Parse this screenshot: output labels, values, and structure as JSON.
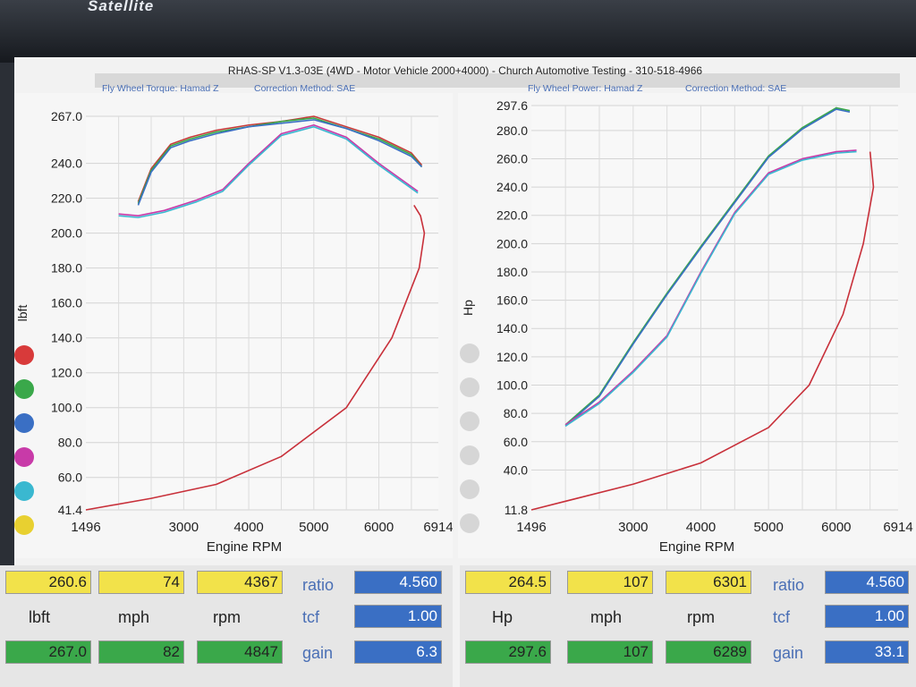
{
  "window": {
    "brand": "Satellite",
    "title": "RHAS-SP V1.3-03E  (4WD - Motor Vehicle 2000+4000) - Church Automotive Testing - 310-518-4966"
  },
  "left_chart": {
    "subtitle_a": "Fly Wheel Torque: Hamad Z",
    "subtitle_b": "Correction Method: SAE",
    "ylabel": "lbft",
    "xlabel": "Engine RPM"
  },
  "right_chart": {
    "subtitle_a": "Fly Wheel Power: Hamad Z",
    "subtitle_b": "Correction Method: SAE",
    "ylabel": "Hp",
    "xlabel": "Engine RPM"
  },
  "legend_colors": [
    "#d83a3a",
    "#3aa84a",
    "#3a6fc4",
    "#c83aa8",
    "#3ab8d0",
    "#e8d030"
  ],
  "chart_data": [
    {
      "type": "line",
      "title": "",
      "xlabel": "Engine RPM",
      "ylabel": "lbft",
      "xlim": [
        1496,
        6914
      ],
      "ylim": [
        41.4,
        267.0
      ],
      "x_ticks": [
        "1496",
        "3000",
        "4000",
        "5000",
        "6000",
        "6914"
      ],
      "y_ticks": [
        "267.0",
        "240.0",
        "220.0",
        "200.0",
        "180.0",
        "160.0",
        "140.0",
        "120.0",
        "100.0",
        "80.0",
        "60.0",
        "41.4"
      ],
      "series": [
        {
          "color": "#c83a3a",
          "x": [
            2300,
            2500,
            2800,
            3100,
            3500,
            4000,
            4500,
            5000,
            5500,
            6000,
            6500,
            6660
          ],
          "y": [
            218,
            237,
            251,
            255,
            259,
            262,
            264,
            267,
            261,
            255,
            246,
            239
          ]
        },
        {
          "color": "#3aa84a",
          "x": [
            2300,
            2500,
            2800,
            3100,
            3500,
            4000,
            4500,
            5000,
            5500,
            6000,
            6500,
            6660
          ],
          "y": [
            217,
            236,
            250,
            254,
            258,
            261,
            264,
            266,
            260,
            254,
            245,
            238
          ]
        },
        {
          "color": "#3a6fc4",
          "x": [
            2300,
            2500,
            2800,
            3100,
            3500,
            4000,
            4500,
            5000,
            5500,
            6000,
            6500,
            6660
          ],
          "y": [
            216,
            235,
            249,
            253,
            257,
            261,
            263,
            265,
            260,
            253,
            244,
            238
          ]
        },
        {
          "color": "#c83aa8",
          "x": [
            2000,
            2300,
            2700,
            3200,
            3600,
            4000,
            4500,
            5000,
            5500,
            6000,
            6600
          ],
          "y": [
            211,
            210,
            213,
            219,
            225,
            240,
            257,
            262,
            255,
            240,
            224
          ]
        },
        {
          "color": "#3ab8d0",
          "x": [
            2000,
            2300,
            2700,
            3200,
            3600,
            4000,
            4500,
            5000,
            5500,
            6000,
            6600
          ],
          "y": [
            210,
            209,
            212,
            218,
            224,
            239,
            256,
            261,
            254,
            239,
            223
          ]
        },
        {
          "color": "#c8303a",
          "x": [
            1496,
            2500,
            3500,
            4500,
            5500,
            6200,
            6620,
            6700,
            6640,
            6540
          ],
          "y": [
            41.4,
            48,
            56,
            72,
            100,
            140,
            180,
            200,
            210,
            216
          ]
        }
      ]
    },
    {
      "type": "line",
      "title": "",
      "xlabel": "Engine RPM",
      "ylabel": "Hp",
      "xlim": [
        1496,
        6914
      ],
      "ylim": [
        11.8,
        297.6
      ],
      "x_ticks": [
        "1496",
        "3000",
        "4000",
        "5000",
        "6000",
        "6914"
      ],
      "y_ticks": [
        "297.6",
        "280.0",
        "260.0",
        "240.0",
        "220.0",
        "200.0",
        "180.0",
        "160.0",
        "140.0",
        "120.0",
        "100.0",
        "80.0",
        "60.0",
        "40.0",
        "11.8"
      ],
      "series": [
        {
          "color": "#3aa84a",
          "x": [
            2000,
            2500,
            3000,
            3500,
            4000,
            4500,
            5000,
            5500,
            6000,
            6200
          ],
          "y": [
            72,
            93,
            130,
            165,
            198,
            230,
            262,
            282,
            296,
            294
          ]
        },
        {
          "color": "#3a6fc4",
          "x": [
            2000,
            2500,
            3000,
            3500,
            4000,
            4500,
            5000,
            5500,
            6000,
            6200
          ],
          "y": [
            71,
            92,
            129,
            164,
            197,
            229,
            261,
            281,
            295,
            293
          ]
        },
        {
          "color": "#c83aa8",
          "x": [
            2000,
            2500,
            3000,
            3500,
            4000,
            4500,
            5000,
            5500,
            6000,
            6300
          ],
          "y": [
            72,
            88,
            110,
            135,
            180,
            222,
            250,
            260,
            265,
            266
          ]
        },
        {
          "color": "#3ab8d0",
          "x": [
            2000,
            2500,
            3000,
            3500,
            4000,
            4500,
            5000,
            5500,
            6000,
            6300
          ],
          "y": [
            71,
            87,
            109,
            134,
            179,
            221,
            249,
            259,
            264,
            265
          ]
        },
        {
          "color": "#c8303a",
          "x": [
            1496,
            3000,
            4000,
            5000,
            5600,
            6100,
            6400,
            6550,
            6500
          ],
          "y": [
            11.8,
            30,
            45,
            70,
            100,
            150,
            200,
            240,
            265
          ]
        }
      ]
    }
  ],
  "left_panel": {
    "top_values": [
      "260.6",
      "74",
      "4367"
    ],
    "ratio_label": "ratio",
    "ratio_value": "4.560",
    "unit_labels": [
      "lbft",
      "mph",
      "rpm"
    ],
    "tcf_label": "tcf",
    "tcf_value": "1.00",
    "bottom_values": [
      "267.0",
      "82",
      "4847"
    ],
    "gain_label": "gain",
    "gain_value": "6.3"
  },
  "right_panel": {
    "top_values": [
      "264.5",
      "107",
      "6301"
    ],
    "ratio_label": "ratio",
    "ratio_value": "4.560",
    "unit_labels": [
      "Hp",
      "mph",
      "rpm"
    ],
    "tcf_label": "tcf",
    "tcf_value": "1.00",
    "bottom_values": [
      "297.6",
      "107",
      "6289"
    ],
    "gain_label": "gain",
    "gain_value": "33.1"
  }
}
